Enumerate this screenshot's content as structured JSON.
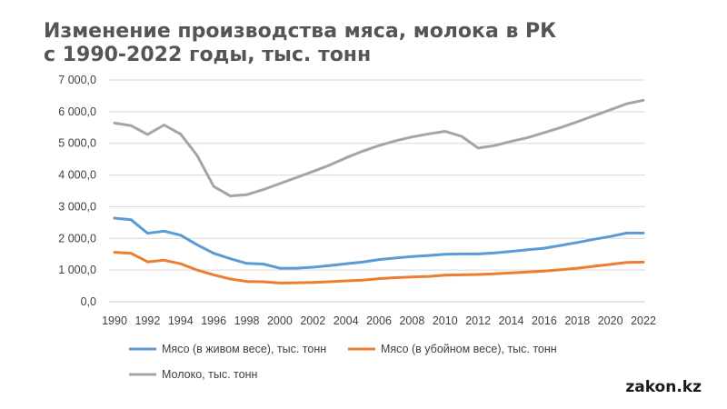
{
  "title_line1": "Изменение производства мяса, молока в РК",
  "title_line2": "с 1990-2022 годы, тыс. тонн",
  "brand": "zakon.kz",
  "chart_data": {
    "type": "line",
    "title": "Изменение производства мяса, молока в РК с 1990-2022 годы, тыс. тонн",
    "xlabel": "",
    "ylabel": "",
    "ylim": [
      0,
      7000
    ],
    "yticks": [
      0,
      1000,
      2000,
      3000,
      4000,
      5000,
      6000,
      7000
    ],
    "ytick_labels": [
      "0,0",
      "1 000,0",
      "2 000,0",
      "3 000,0",
      "4 000,0",
      "5 000,0",
      "6 000,0",
      "7 000,0"
    ],
    "xtick_labels": [
      "1990",
      "1992",
      "1994",
      "1996",
      "1998",
      "2000",
      "2002",
      "2004",
      "2006",
      "2008",
      "2010",
      "2012",
      "2014",
      "2016",
      "2018",
      "2020",
      "2022"
    ],
    "grid": true,
    "legend_position": "bottom",
    "x": [
      1990,
      1991,
      1992,
      1993,
      1994,
      1995,
      1996,
      1997,
      1998,
      1999,
      2000,
      2001,
      2002,
      2003,
      2004,
      2005,
      2006,
      2007,
      2008,
      2009,
      2010,
      2011,
      2012,
      2013,
      2014,
      2015,
      2016,
      2017,
      2018,
      2019,
      2020,
      2021,
      2022
    ],
    "series": [
      {
        "name": "Мясо (в живом весе), тыс. тонн",
        "color": "#5B9BD5",
        "values": [
          2640,
          2590,
          2160,
          2230,
          2100,
          1800,
          1530,
          1360,
          1210,
          1190,
          1060,
          1060,
          1090,
          1140,
          1200,
          1250,
          1330,
          1380,
          1430,
          1460,
          1500,
          1510,
          1510,
          1540,
          1590,
          1640,
          1690,
          1780,
          1870,
          1970,
          2060,
          2170,
          2170
        ]
      },
      {
        "name": "Мясо (в убойном весе), тыс. тонн",
        "color": "#ED7D31",
        "values": [
          1560,
          1530,
          1260,
          1310,
          1200,
          1000,
          850,
          720,
          640,
          630,
          590,
          600,
          610,
          630,
          660,
          680,
          730,
          760,
          780,
          800,
          840,
          850,
          860,
          880,
          910,
          940,
          970,
          1010,
          1060,
          1120,
          1180,
          1240,
          1250
        ]
      },
      {
        "name": "Молоко, тыс. тонн",
        "color": "#A5A5A5",
        "values": [
          5640,
          5560,
          5280,
          5580,
          5290,
          4620,
          3640,
          3340,
          3380,
          3540,
          3730,
          3920,
          4110,
          4310,
          4540,
          4750,
          4930,
          5080,
          5200,
          5300,
          5380,
          5220,
          4850,
          4930,
          5060,
          5180,
          5340,
          5500,
          5680,
          5870,
          6060,
          6250,
          6360
        ]
      }
    ]
  }
}
